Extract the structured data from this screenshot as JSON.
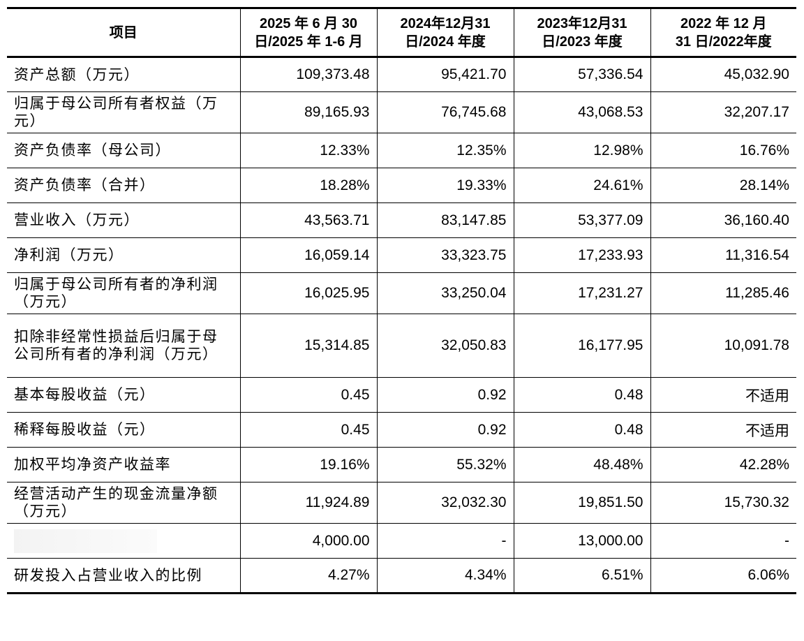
{
  "header": {
    "item": "项目",
    "col1_l1": "2025 年 6 月 30",
    "col1_l2": "日/2025 年 1-6 月",
    "col2_l1": "2024年12月31",
    "col2_l2": "日/2024 年度",
    "col3_l1": "2023年12月31",
    "col3_l2": "日/2023 年度",
    "col4_l1": "2022 年 12 月",
    "col4_l2": "31 日/2022年度"
  },
  "rows": [
    {
      "label": "资产总额（万元）",
      "v1": "109,373.48",
      "v2": "95,421.70",
      "v3": "57,336.54",
      "v4": "45,032.90"
    },
    {
      "label": "归属于母公司所有者权益（万元）",
      "v1": "89,165.93",
      "v2": "76,745.68",
      "v3": "43,068.53",
      "v4": "32,207.17"
    },
    {
      "label": "资产负债率（母公司）",
      "v1": "12.33%",
      "v2": "12.35%",
      "v3": "12.98%",
      "v4": "16.76%"
    },
    {
      "label": "资产负债率（合并）",
      "v1": "18.28%",
      "v2": "19.33%",
      "v3": "24.61%",
      "v4": "28.14%"
    },
    {
      "label": "营业收入（万元）",
      "v1": "43,563.71",
      "v2": "83,147.85",
      "v3": "53,377.09",
      "v4": "36,160.40"
    },
    {
      "label": "净利润（万元）",
      "v1": "16,059.14",
      "v2": "33,323.75",
      "v3": "17,233.93",
      "v4": "11,316.54"
    },
    {
      "label": "归属于母公司所有者的净利润（万元）",
      "v1": "16,025.95",
      "v2": "33,250.04",
      "v3": "17,231.27",
      "v4": "11,285.46"
    },
    {
      "label": "扣除非经常性损益后归属于母公司所有者的净利润（万元）",
      "v1": "15,314.85",
      "v2": "32,050.83",
      "v3": "16,177.95",
      "v4": "10,091.78"
    },
    {
      "label": "基本每股收益（元）",
      "v1": "0.45",
      "v2": "0.92",
      "v3": "0.48",
      "v4": "不适用"
    },
    {
      "label": "稀释每股收益（元）",
      "v1": "0.45",
      "v2": "0.92",
      "v3": "0.48",
      "v4": "不适用"
    },
    {
      "label": "加权平均净资产收益率",
      "v1": "19.16%",
      "v2": "55.32%",
      "v3": "48.48%",
      "v4": "42.28%"
    },
    {
      "label": "经营活动产生的现金流量净额（万元）",
      "v1": "11,924.89",
      "v2": "32,032.30",
      "v3": "19,851.50",
      "v4": "15,730.32"
    },
    {
      "label": "",
      "v1": "4,000.00",
      "v2": "-",
      "v3": "13,000.00",
      "v4": "-"
    },
    {
      "label": "研发投入占营业收入的比例",
      "v1": "4.27%",
      "v2": "4.34%",
      "v3": "6.51%",
      "v4": "6.06%"
    }
  ]
}
